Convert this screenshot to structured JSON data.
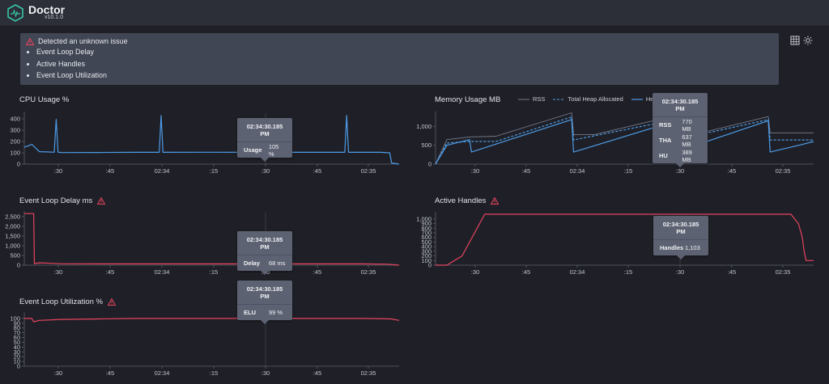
{
  "header": {
    "title": "Doctor",
    "version": "v10.1.0"
  },
  "alert": {
    "title": "Detected an unknown issue",
    "items": [
      "Event Loop Delay",
      "Active Handles",
      "Event Loop Utilization"
    ]
  },
  "toolbar": {
    "grid_icon": "grid-icon",
    "theme_icon": "sun-icon"
  },
  "colors": {
    "blue": "#4d9be6",
    "red": "#e8435f",
    "warning": "#e8435f"
  },
  "charts": {
    "cpu": {
      "title": "CPU Usage %"
    },
    "memory": {
      "title": "Memory Usage MB"
    },
    "delay": {
      "title": "Event Loop Delay ms"
    },
    "handles": {
      "title": "Active Handles"
    },
    "elu": {
      "title": "Event Loop Utilization %"
    }
  },
  "legend": {
    "rss": "RSS",
    "tha": "Total Heap Allocated",
    "heap": "Heap"
  },
  "tooltips": {
    "cpu": {
      "time": "02:34:30.185 PM",
      "rows": [
        {
          "label": "Usage",
          "value": "105 %"
        }
      ]
    },
    "memory": {
      "time": "02:34:30.185 PM",
      "rows": [
        {
          "label": "RSS",
          "value": "770 MB"
        },
        {
          "label": "THA",
          "value": "637 MB"
        },
        {
          "label": "HU",
          "value": "389 MB"
        }
      ]
    },
    "delay": {
      "time": "02:34:30.185 PM",
      "rows": [
        {
          "label": "Delay",
          "value": "68 ms"
        }
      ]
    },
    "handles": {
      "time": "02:34:30.185 PM",
      "rows": [
        {
          "label": "Handles",
          "value": "1,103"
        }
      ]
    },
    "elu": {
      "time": "02:34:30.185 PM",
      "rows": [
        {
          "label": "ELU",
          "value": "99 %"
        }
      ]
    }
  },
  "chart_data": [
    {
      "type": "line",
      "title": "CPU Usage %",
      "x_ticks": [
        ":30",
        ":45",
        "02:34",
        ":15",
        ":30",
        ":45",
        "02:35"
      ],
      "y_ticks": [
        "0",
        "100",
        "200",
        "300",
        "400"
      ],
      "ylim": [
        0,
        450
      ],
      "series": [
        {
          "name": "Usage",
          "color": "#4d9be6",
          "x": [
            0,
            0.01,
            0.02,
            0.04,
            0.06,
            0.08,
            0.085,
            0.09,
            0.1,
            0.2,
            0.3,
            0.36,
            0.365,
            0.37,
            0.5,
            0.6,
            0.7,
            0.855,
            0.86,
            0.865,
            0.95,
            0.975,
            0.98,
            1.0
          ],
          "y": [
            150,
            160,
            175,
            110,
            108,
            105,
            395,
            105,
            102,
            103,
            104,
            104,
            430,
            104,
            105,
            104,
            104,
            104,
            430,
            104,
            104,
            100,
            10,
            0
          ]
        }
      ]
    },
    {
      "type": "line",
      "title": "Memory Usage MB",
      "x_ticks": [
        ":30",
        ":45",
        "02:34",
        ":15",
        ":30",
        ":45",
        "02:35"
      ],
      "y_ticks": [
        "0",
        "500",
        "1,000"
      ],
      "ylim": [
        0,
        1350
      ],
      "series": [
        {
          "name": "RSS",
          "color": "#747a8a",
          "x": [
            0,
            0.03,
            0.09,
            0.16,
            0.36,
            0.365,
            0.42,
            0.63,
            0.635,
            0.7,
            0.88,
            0.885,
            1.0
          ],
          "y": [
            0,
            650,
            720,
            740,
            1360,
            780,
            780,
            1280,
            820,
            820,
            1260,
            830,
            830
          ]
        },
        {
          "name": "Total Heap Allocated",
          "color": "#4d9be6",
          "x": [
            0,
            0.03,
            0.09,
            0.16,
            0.36,
            0.365,
            0.63,
            0.635,
            0.88,
            0.885,
            1.0
          ],
          "y": [
            0,
            560,
            600,
            600,
            1250,
            640,
            1170,
            640,
            1180,
            640,
            640
          ]
        },
        {
          "name": "Heap",
          "color": "#4d9be6",
          "x": [
            0,
            0.03,
            0.09,
            0.095,
            0.36,
            0.365,
            0.63,
            0.635,
            0.88,
            0.885,
            0.97,
            1.0
          ],
          "y": [
            0,
            500,
            650,
            320,
            1180,
            320,
            1130,
            320,
            1150,
            320,
            520,
            600
          ]
        }
      ]
    },
    {
      "type": "line",
      "title": "Event Loop Delay ms",
      "x_ticks": [
        ":30",
        ":45",
        "02:34",
        ":15",
        ":30",
        ":45",
        "02:35"
      ],
      "y_ticks": [
        "0",
        "500",
        "1,000",
        "1,500",
        "2,000",
        "2,500"
      ],
      "ylim": [
        0,
        2700
      ],
      "series": [
        {
          "name": "Delay",
          "color": "#e8435f",
          "x": [
            0,
            0.025,
            0.027,
            0.04,
            0.08,
            0.1,
            0.3,
            0.5,
            0.7,
            0.9,
            0.97,
            1.0
          ],
          "y": [
            2650,
            2650,
            80,
            120,
            90,
            70,
            68,
            68,
            66,
            68,
            50,
            0
          ]
        }
      ]
    },
    {
      "type": "line",
      "title": "Active Handles",
      "x_ticks": [
        ":30",
        ":45",
        "02:34",
        ":15",
        ":30",
        ":45",
        "02:35"
      ],
      "y_ticks": [
        "0",
        "100",
        "200",
        "300",
        "400",
        "500",
        "600",
        "700",
        "800",
        "900",
        "1,000"
      ],
      "ylim": [
        0,
        1120
      ],
      "series": [
        {
          "name": "Handles",
          "color": "#e8435f",
          "x": [
            0,
            0.03,
            0.07,
            0.13,
            0.5,
            0.8,
            0.94,
            0.95,
            0.96,
            0.97,
            0.975,
            0.98,
            1.0
          ],
          "y": [
            0,
            0,
            200,
            1103,
            1103,
            1103,
            1103,
            1000,
            900,
            600,
            300,
            100,
            100
          ]
        }
      ]
    },
    {
      "type": "line",
      "title": "Event Loop Utilization %",
      "x_ticks": [
        ":30",
        ":45",
        "02:34",
        ":15",
        ":30",
        ":45",
        "02:35"
      ],
      "y_ticks": [
        "0",
        "10",
        "20",
        "30",
        "40",
        "50",
        "60",
        "70",
        "80",
        "90",
        "100"
      ],
      "ylim": [
        0,
        110
      ],
      "series": [
        {
          "name": "ELU",
          "color": "#e8435f",
          "x": [
            0,
            0.02,
            0.025,
            0.04,
            0.1,
            0.2,
            0.3,
            0.5,
            0.7,
            0.9,
            0.98,
            1.0
          ],
          "y": [
            100,
            100,
            93,
            96,
            98,
            99,
            100,
            100,
            100,
            100,
            99,
            96
          ]
        }
      ]
    }
  ]
}
